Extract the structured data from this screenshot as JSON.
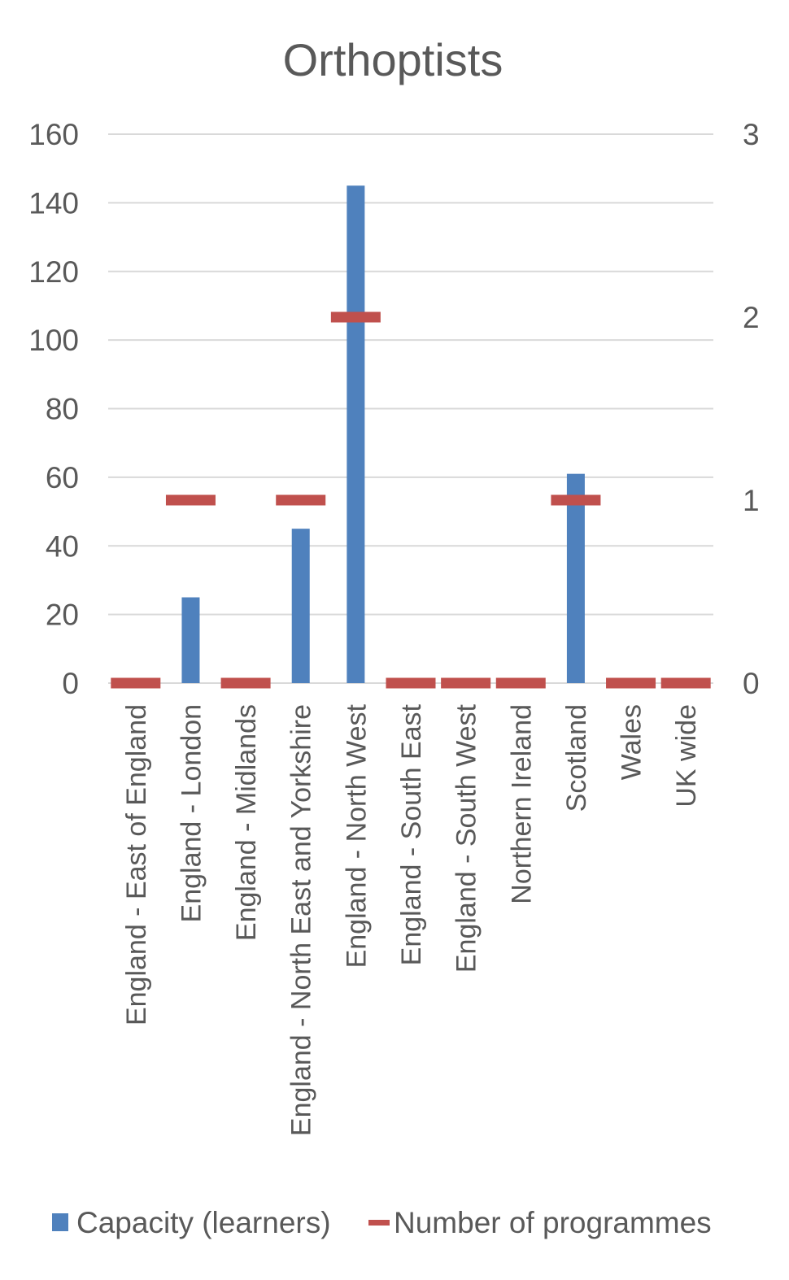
{
  "chart_data": {
    "type": "bar",
    "title": "Orthoptists",
    "xlabel": "",
    "ylabel": "",
    "ylim": [
      0,
      160
    ],
    "y2lim": [
      0,
      3
    ],
    "y_ticks": [
      "0",
      "20",
      "40",
      "60",
      "80",
      "100",
      "120",
      "140",
      "160"
    ],
    "y2_ticks": [
      "0",
      "1",
      "2",
      "3"
    ],
    "grid": true,
    "legend_position": "bottom",
    "categories": [
      "England - East of England",
      "England - London",
      "England - Midlands",
      "England - North East and Yorkshire",
      "England - North West",
      "England - South East",
      "England - South West",
      "Northern Ireland",
      "Scotland",
      "Wales",
      "UK wide"
    ],
    "series": [
      {
        "name": "Capacity (learners)",
        "type": "bar",
        "axis": "left",
        "color": "#4f81bd",
        "values": [
          0,
          25,
          0,
          45,
          145,
          0,
          0,
          0,
          61,
          0,
          0
        ]
      },
      {
        "name": "Number of programmes",
        "type": "marker",
        "axis": "right",
        "color": "#c0504d",
        "values": [
          0,
          1,
          0,
          1,
          2,
          0,
          0,
          0,
          1,
          0,
          0
        ]
      }
    ]
  }
}
